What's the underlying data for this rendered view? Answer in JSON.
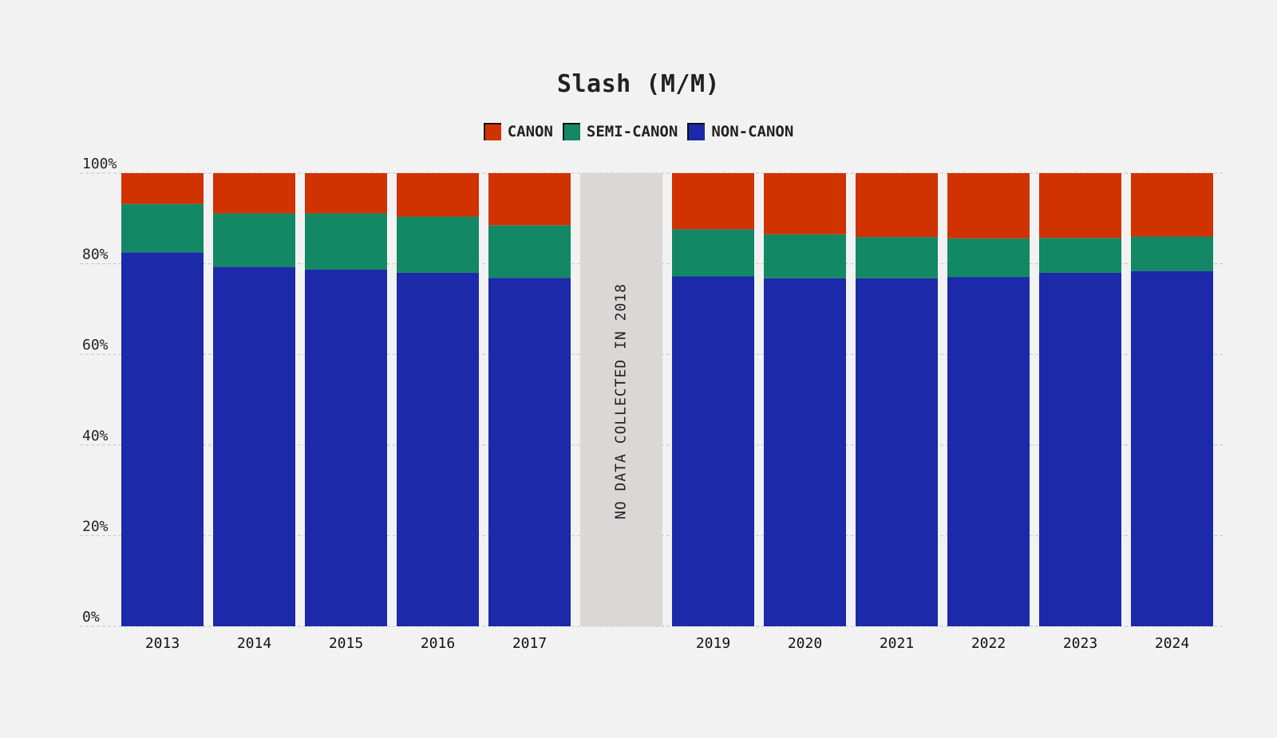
{
  "chart_data": {
    "type": "bar",
    "stacked": true,
    "title": "Slash (M/M)",
    "categories": [
      "2013",
      "2014",
      "2015",
      "2016",
      "2017",
      "2018",
      "2019",
      "2020",
      "2021",
      "2022",
      "2023",
      "2024"
    ],
    "series": [
      {
        "name": "NON-CANON",
        "color": "#1c29a8",
        "values": [
          82.5,
          79.3,
          78.7,
          78.0,
          76.9,
          null,
          77.2,
          76.8,
          76.8,
          77.1,
          78.0,
          78.4
        ]
      },
      {
        "name": "SEMI-CANON",
        "color": "#138864",
        "values": [
          10.7,
          11.8,
          12.4,
          12.4,
          11.6,
          null,
          10.4,
          9.7,
          9.1,
          8.5,
          7.7,
          7.6
        ]
      },
      {
        "name": "CANON",
        "color": "#d03200",
        "values": [
          6.8,
          8.9,
          8.9,
          9.6,
          11.5,
          null,
          12.4,
          13.5,
          14.1,
          14.4,
          14.3,
          14.0
        ]
      }
    ],
    "no_data": {
      "category": "2018",
      "label": "NO DATA COLLECTED IN 2018",
      "color": "#dad7d7"
    },
    "yticks": [
      "0%",
      "20%",
      "40%",
      "60%",
      "80%",
      "100%"
    ],
    "ylim": [
      0,
      100
    ],
    "grid": true,
    "legend_position": "top-center",
    "xlabel": "",
    "ylabel": ""
  }
}
